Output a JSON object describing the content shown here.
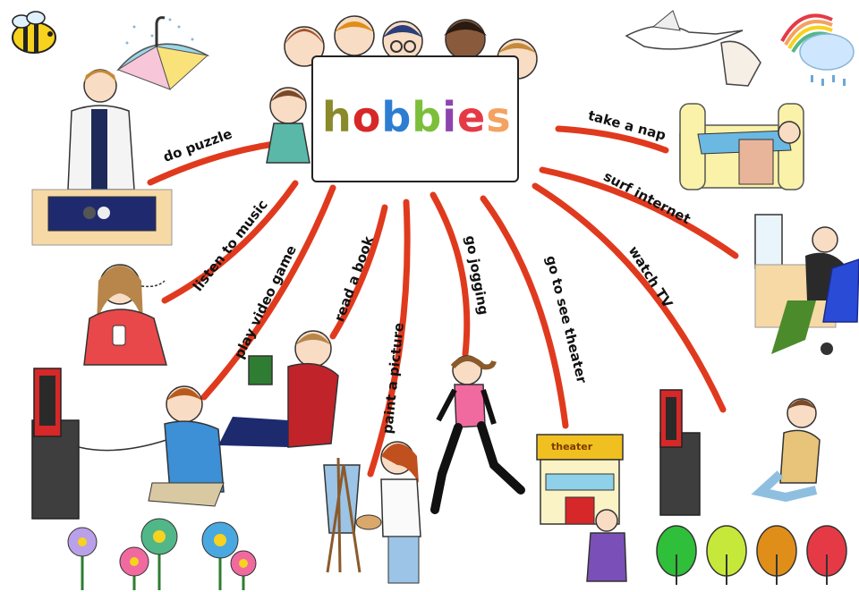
{
  "title": "hobbies",
  "title_letter_colors": [
    "#8a8a2a",
    "#d62828",
    "#2d7dd2",
    "#7cbf3a",
    "#8e44ad",
    "#e63946",
    "#f4a261"
  ],
  "hobbies": [
    {
      "label": "do puzzle",
      "icon": "puzzle-icon"
    },
    {
      "label": "listen to music",
      "icon": "headphones-icon"
    },
    {
      "label": "play video game",
      "icon": "gamepad-icon"
    },
    {
      "label": "read a book",
      "icon": "book-icon"
    },
    {
      "label": "paint a picture",
      "icon": "easel-icon"
    },
    {
      "label": "go jogging",
      "icon": "runner-icon"
    },
    {
      "label": "go to see theater",
      "icon": "theater-icon"
    },
    {
      "label": "watch TV",
      "icon": "tv-icon"
    },
    {
      "label": "surf internet",
      "icon": "computer-icon"
    },
    {
      "label": "take a nap",
      "icon": "sofa-icon"
    }
  ],
  "theater_sign": "theater",
  "colors": {
    "branch": "#e03a1e",
    "board_border": "#222222"
  },
  "decorations": [
    "bee-icon",
    "umbrella-icon",
    "stork-icon",
    "rainbow-cloud-icon",
    "flowers-icon",
    "trees-icon",
    "kids-icon"
  ]
}
